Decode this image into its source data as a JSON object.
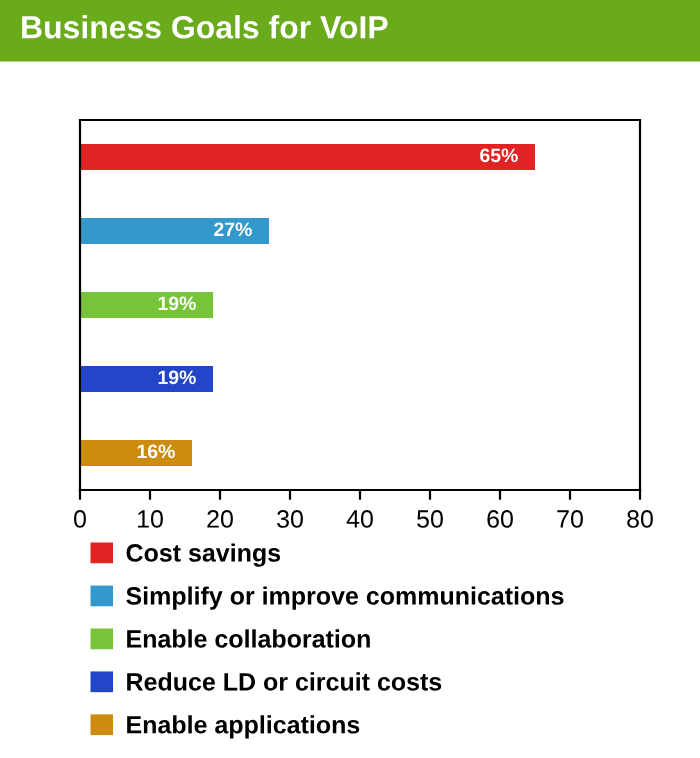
{
  "chart_data": {
    "type": "bar",
    "title": "Business Goals for VoIP",
    "orientation": "horizontal",
    "categories": [
      null,
      null,
      null,
      null,
      null
    ],
    "series": [
      {
        "name": "Cost savings",
        "color": "#e02424",
        "values": [
          65,
          null,
          null,
          null,
          null
        ],
        "value_labels": [
          "65%",
          null,
          null,
          null,
          null
        ]
      },
      {
        "name": "Simplify or improve communications",
        "color": "#3399cc",
        "values": [
          null,
          27,
          null,
          null,
          null
        ],
        "value_labels": [
          null,
          "27%",
          null,
          null,
          null
        ]
      },
      {
        "name": "Enable collaboration",
        "color": "#77c43a",
        "values": [
          null,
          null,
          19,
          null,
          null
        ],
        "value_labels": [
          null,
          null,
          "19%",
          null,
          null
        ]
      },
      {
        "name": "Reduce LD or circuit costs",
        "color": "#2346c8",
        "values": [
          null,
          null,
          null,
          19,
          null
        ],
        "value_labels": [
          null,
          null,
          null,
          "19%",
          null
        ]
      },
      {
        "name": "Enable applications",
        "color": "#cc8c10",
        "values": [
          null,
          null,
          null,
          null,
          16
        ],
        "value_labels": [
          null,
          null,
          null,
          null,
          "16%"
        ]
      }
    ],
    "xlim": [
      0,
      80
    ],
    "xticks": [
      0,
      10,
      20,
      30,
      40,
      50,
      60,
      70,
      80
    ],
    "tick_labels": "x",
    "grid": false,
    "legend": "bottom"
  }
}
